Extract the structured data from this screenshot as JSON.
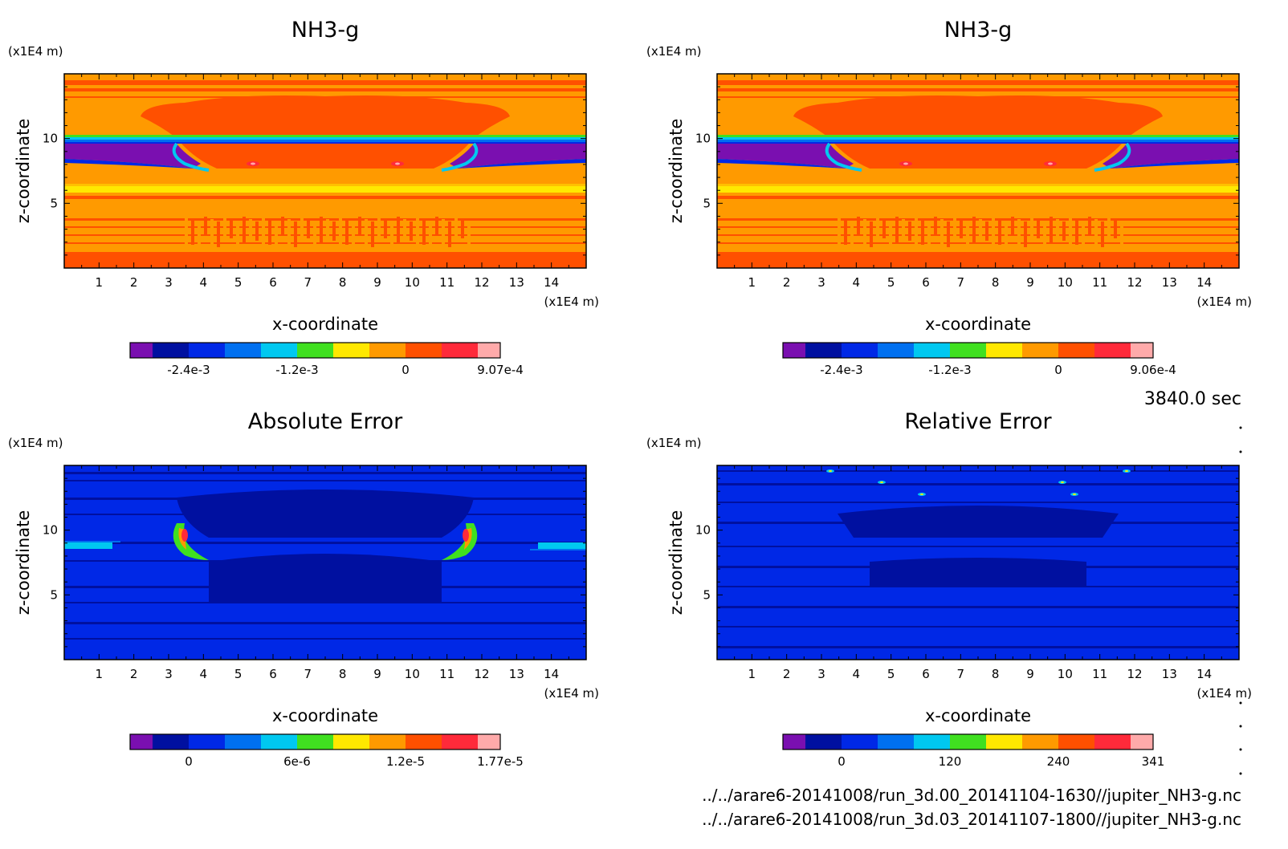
{
  "chart_data": [
    {
      "type": "heatmap",
      "title": "NH3-g",
      "xlabel": "x-coordinate",
      "ylabel": "z-coordinate",
      "x_unit": "(x1E4 m)",
      "z_unit": "(x1E4 m)",
      "xlim": [
        0,
        15
      ],
      "zlim": [
        0,
        15
      ],
      "x_ticks": [
        "1",
        "2",
        "3",
        "4",
        "5",
        "6",
        "7",
        "8",
        "9",
        "10",
        "11",
        "12",
        "13",
        "14"
      ],
      "z_ticks": [
        "5",
        "10"
      ],
      "colorbar": {
        "labels": [
          "-2.4e-3",
          "-1.2e-3",
          "0",
          "9.07e-4"
        ],
        "colors": [
          "#7a0fb0",
          "#0010a0",
          "#0028e6",
          "#0070f0",
          "#00c8f0",
          "#40e020",
          "#ffe800",
          "#ff9a00",
          "#ff5000",
          "#ff2a3a",
          "#ffaaaa"
        ]
      }
    },
    {
      "type": "heatmap",
      "title": "NH3-g",
      "xlabel": "x-coordinate",
      "ylabel": "z-coordinate",
      "x_unit": "(x1E4 m)",
      "z_unit": "(x1E4 m)",
      "xlim": [
        0,
        15
      ],
      "zlim": [
        0,
        15
      ],
      "x_ticks": [
        "1",
        "2",
        "3",
        "4",
        "5",
        "6",
        "7",
        "8",
        "9",
        "10",
        "11",
        "12",
        "13",
        "14"
      ],
      "z_ticks": [
        "5",
        "10"
      ],
      "colorbar": {
        "labels": [
          "-2.4e-3",
          "-1.2e-3",
          "0",
          "9.06e-4"
        ],
        "colors": [
          "#7a0fb0",
          "#0010a0",
          "#0028e6",
          "#0070f0",
          "#00c8f0",
          "#40e020",
          "#ffe800",
          "#ff9a00",
          "#ff5000",
          "#ff2a3a",
          "#ffaaaa"
        ]
      }
    },
    {
      "type": "heatmap",
      "title": "Absolute Error",
      "xlabel": "x-coordinate",
      "ylabel": "z-coordinate",
      "x_unit": "(x1E4 m)",
      "z_unit": "(x1E4 m)",
      "xlim": [
        0,
        15
      ],
      "zlim": [
        0,
        15
      ],
      "x_ticks": [
        "1",
        "2",
        "3",
        "4",
        "5",
        "6",
        "7",
        "8",
        "9",
        "10",
        "11",
        "12",
        "13",
        "14"
      ],
      "z_ticks": [
        "5",
        "10"
      ],
      "colorbar": {
        "labels": [
          "0",
          "6e-6",
          "1.2e-5",
          "1.77e-5"
        ],
        "colors": [
          "#7a0fb0",
          "#0010a0",
          "#0028e6",
          "#0070f0",
          "#00c8f0",
          "#40e020",
          "#ffe800",
          "#ff9a00",
          "#ff5000",
          "#ff2a3a",
          "#ffaaaa"
        ]
      }
    },
    {
      "type": "heatmap",
      "title": "Relative Error",
      "xlabel": "x-coordinate",
      "ylabel": "z-coordinate",
      "x_unit": "(x1E4 m)",
      "z_unit": "(x1E4 m)",
      "xlim": [
        0,
        15
      ],
      "zlim": [
        0,
        15
      ],
      "x_ticks": [
        "1",
        "2",
        "3",
        "4",
        "5",
        "6",
        "7",
        "8",
        "9",
        "10",
        "11",
        "12",
        "13",
        "14"
      ],
      "z_ticks": [
        "5",
        "10"
      ],
      "colorbar": {
        "labels": [
          "0",
          "120",
          "240",
          "341"
        ],
        "colors": [
          "#7a0fb0",
          "#0010a0",
          "#0028e6",
          "#0070f0",
          "#00c8f0",
          "#40e020",
          "#ffe800",
          "#ff9a00",
          "#ff5000",
          "#ff2a3a",
          "#ffaaaa"
        ]
      }
    }
  ],
  "time_label": "3840.0 sec",
  "file_paths": [
    "../../arare6-20141008/run_3d.00_20141104-1630//jupiter_NH3-g.nc",
    "../../arare6-20141008/run_3d.03_20141107-1800//jupiter_NH3-g.nc"
  ]
}
